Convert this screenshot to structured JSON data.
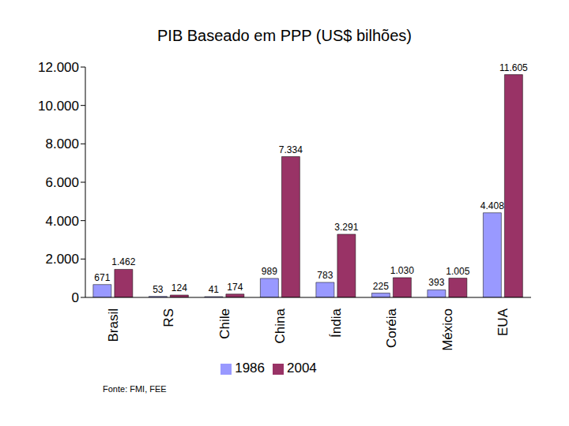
{
  "chart_data": {
    "type": "bar",
    "title": "PIB Baseado em PPP (US$ bilhões)",
    "categories": [
      "Brasil",
      "RS",
      "Chile",
      "China",
      "Índia",
      "Coréia",
      "México",
      "EUA"
    ],
    "series": [
      {
        "name": "1986",
        "color": "#9999ff",
        "values": [
          671,
          53,
          41,
          989,
          783,
          225,
          393,
          4408
        ],
        "value_labels": [
          "671",
          "53",
          "41",
          "989",
          "783",
          "225",
          "393",
          "4.408"
        ]
      },
      {
        "name": "2004",
        "color": "#993366",
        "values": [
          1462,
          124,
          174,
          7334,
          3291,
          1030,
          1005,
          11605
        ],
        "value_labels": [
          "1.462",
          "124",
          "174",
          "7.334",
          "3.291",
          "1.030",
          "1.005",
          "11.605"
        ]
      }
    ],
    "ylim": [
      0,
      12000
    ],
    "yticks": [
      0,
      {
        "value": 2000,
        "label": "2.000"
      },
      {
        "value": 4000,
        "label": "4.000"
      },
      {
        "value": 6000,
        "label": "6.000"
      },
      {
        "value": 8000,
        "label": "8.000"
      },
      {
        "value": 10000,
        "label": "10.000"
      },
      {
        "value": 12000,
        "label": "12.000"
      }
    ],
    "grid": false,
    "legend": "bottom",
    "data_labels": true,
    "annotations": [
      "Fonte: FMI, FEE"
    ]
  }
}
